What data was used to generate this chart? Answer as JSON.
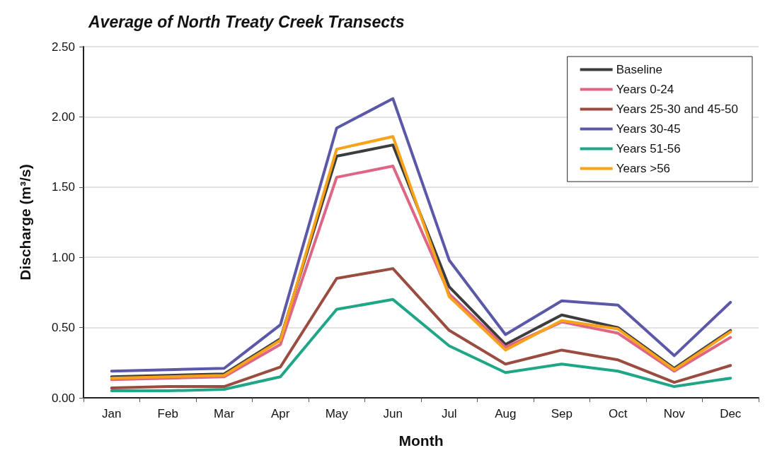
{
  "chart_data": {
    "type": "line",
    "title": "Average of North Treaty Creek Transects",
    "xlabel": "Month",
    "ylabel": "Discharge (m³/s)",
    "categories": [
      "Jan",
      "Feb",
      "Mar",
      "Apr",
      "May",
      "Jun",
      "Jul",
      "Aug",
      "Sep",
      "Oct",
      "Nov",
      "Dec"
    ],
    "ylim": [
      0,
      2.5
    ],
    "yticks": [
      {
        "value": 0,
        "label": "0.00"
      },
      {
        "value": 0.5,
        "label": "0.50"
      },
      {
        "value": 1,
        "label": "1.00"
      },
      {
        "value": 1.5,
        "label": "1.50"
      },
      {
        "value": 2,
        "label": "2.00"
      },
      {
        "value": 2.5,
        "label": "2.50"
      }
    ],
    "grid": "y",
    "legend": "top right",
    "marker": "none",
    "line_style": "solid",
    "series": [
      {
        "name": "Baseline",
        "color": "#3d3d3d",
        "values": [
          0.15,
          0.16,
          0.17,
          0.42,
          1.72,
          1.8,
          0.79,
          0.38,
          0.59,
          0.5,
          0.21,
          0.48
        ]
      },
      {
        "name": "Years 0-24",
        "color": "#de6584",
        "values": [
          0.13,
          0.14,
          0.15,
          0.38,
          1.57,
          1.65,
          0.74,
          0.36,
          0.54,
          0.46,
          0.19,
          0.43
        ]
      },
      {
        "name": "Years 25-30 and 45-50",
        "color": "#994c3f",
        "values": [
          0.07,
          0.08,
          0.08,
          0.22,
          0.85,
          0.92,
          0.48,
          0.24,
          0.34,
          0.27,
          0.11,
          0.23
        ]
      },
      {
        "name": "Years 30-45",
        "color": "#5b58a8",
        "values": [
          0.19,
          0.2,
          0.21,
          0.52,
          1.92,
          2.13,
          0.98,
          0.45,
          0.69,
          0.66,
          0.3,
          0.68
        ]
      },
      {
        "name": "Years 51-56",
        "color": "#1fa687",
        "values": [
          0.05,
          0.05,
          0.06,
          0.15,
          0.63,
          0.7,
          0.37,
          0.18,
          0.24,
          0.19,
          0.08,
          0.14
        ]
      },
      {
        "name": "Years >56",
        "color": "#f7a21b",
        "values": [
          0.14,
          0.15,
          0.16,
          0.41,
          1.77,
          1.86,
          0.72,
          0.34,
          0.55,
          0.49,
          0.2,
          0.47
        ]
      }
    ]
  }
}
